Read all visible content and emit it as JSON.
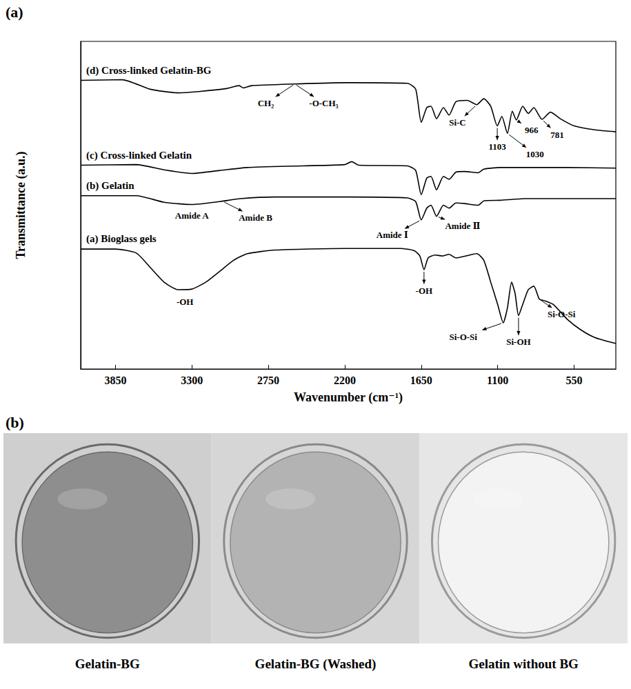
{
  "panel_a_label": "(a)",
  "chart_data": {
    "type": "line",
    "x_label": "Wavenumber (cm⁻¹)",
    "y_label": "Transmittance (a.u.)",
    "xlim": [
      4100,
      250
    ],
    "xticks": [
      3850,
      3300,
      2750,
      2200,
      1650,
      1100,
      550
    ],
    "ylim": [
      0,
      100
    ],
    "yticks": [],
    "tick_labels": "x",
    "grid": false,
    "series": [
      {
        "name": "(d) Cross-linked Gelatin-BG",
        "color": "#000000",
        "x": [
          4100,
          3800,
          3600,
          3400,
          3250,
          3050,
          2960,
          2930,
          2870,
          2560,
          2200,
          1750,
          1690,
          1650,
          1610,
          1580,
          1540,
          1490,
          1450,
          1400,
          1320,
          1250,
          1200,
          1150,
          1103,
          1070,
          1030,
          995,
          966,
          920,
          880,
          840,
          781,
          720,
          650,
          550,
          400,
          250
        ],
        "values": [
          88.1,
          88.3,
          85.4,
          84.3,
          84.7,
          85.6,
          86.5,
          85.8,
          86.5,
          87.0,
          87.4,
          87.2,
          85.4,
          75.3,
          79.8,
          80.2,
          76.4,
          79.8,
          77.5,
          81.6,
          82.0,
          80.7,
          82.5,
          80.2,
          74.2,
          77.1,
          71.9,
          78.7,
          76.0,
          80.2,
          78.0,
          79.8,
          76.2,
          78.4,
          76.4,
          74.2,
          73.0,
          72.4
        ]
      },
      {
        "name": "(c) Cross-linked Gelatin",
        "color": "#000000",
        "x": [
          4100,
          3700,
          3500,
          3300,
          3100,
          2900,
          2500,
          2200,
          2150,
          2100,
          1750,
          1690,
          1650,
          1610,
          1580,
          1540,
          1490,
          1450,
          1400,
          1340,
          1240,
          1200,
          1080,
          600,
          250
        ],
        "values": [
          62.2,
          62.4,
          60.8,
          59.7,
          60.6,
          61.5,
          62.0,
          62.4,
          63.3,
          62.2,
          62.0,
          60.6,
          53.2,
          58.3,
          58.8,
          54.7,
          58.8,
          57.9,
          60.1,
          60.3,
          59.9,
          61.0,
          61.5,
          61.5,
          61.3
        ]
      },
      {
        "name": "(b) Gelatin",
        "color": "#000000",
        "x": [
          4100,
          3700,
          3500,
          3300,
          3100,
          2950,
          2700,
          2200,
          1750,
          1690,
          1650,
          1610,
          1580,
          1540,
          1490,
          1450,
          1400,
          1340,
          1240,
          1200,
          1080,
          900,
          600,
          250
        ],
        "values": [
          52.9,
          52.9,
          50.9,
          50.2,
          51.1,
          52.0,
          52.5,
          52.5,
          52.2,
          51.1,
          45.5,
          49.1,
          50.0,
          46.6,
          50.0,
          49.1,
          50.7,
          50.5,
          50.0,
          51.3,
          51.5,
          52.0,
          52.0,
          52.0
        ]
      },
      {
        "name": "(a) Bioglass gels",
        "color": "#000000",
        "x": [
          4100,
          3850,
          3700,
          3600,
          3500,
          3400,
          3300,
          3200,
          3100,
          3000,
          2900,
          2700,
          2200,
          1800,
          1700,
          1660,
          1630,
          1600,
          1550,
          1500,
          1450,
          1400,
          1300,
          1250,
          1200,
          1150,
          1100,
          1060,
          1030,
          1000,
          975,
          950,
          920,
          880,
          840,
          800,
          760,
          700,
          600,
          500,
          400,
          250
        ],
        "values": [
          36.6,
          36.6,
          35.4,
          31.0,
          26.5,
          24.2,
          24.4,
          26.5,
          29.8,
          33.2,
          35.2,
          36.3,
          36.8,
          36.8,
          36.1,
          34.5,
          30.3,
          33.9,
          34.8,
          34.5,
          35.0,
          33.9,
          34.8,
          35.2,
          33.2,
          26.5,
          19.7,
          14.1,
          18.6,
          26.5,
          23.1,
          16.3,
          19.7,
          24.2,
          25.3,
          21.3,
          20.8,
          19.7,
          15.2,
          11.9,
          9.6,
          7.8
        ]
      }
    ],
    "annotations": [
      {
        "text": "-OH",
        "x": 3350,
        "y": 24.3
      },
      {
        "text": "-OH",
        "x": 1630,
        "y": 30.3
      },
      {
        "text": "Si-O-Si",
        "x": 1060,
        "y": 14.1
      },
      {
        "text": "Si-OH",
        "x": 950,
        "y": 16.3
      },
      {
        "text": "Si-O-Si",
        "x": 800,
        "y": 21.3
      },
      {
        "text": "Amide A",
        "x": 3300,
        "y": 50.2
      },
      {
        "text": "Amide B",
        "x": 3080,
        "y": 51.2
      },
      {
        "text": "Amide Ⅰ",
        "x": 1650,
        "y": 45.5
      },
      {
        "text": "Amide Ⅱ",
        "x": 1540,
        "y": 46.6
      },
      {
        "text": "CH₂",
        "x": 2560,
        "y": 87.0
      },
      {
        "text": "-O-CH₃",
        "x": 2560,
        "y": 87.0
      },
      {
        "text": "Si-C",
        "x": 1250,
        "y": 80.7
      },
      {
        "text": "1103",
        "x": 1103,
        "y": 74.2
      },
      {
        "text": "1030",
        "x": 1030,
        "y": 71.9
      },
      {
        "text": "966",
        "x": 966,
        "y": 76.0
      },
      {
        "text": "781",
        "x": 781,
        "y": 76.2
      }
    ]
  },
  "panel_b": {
    "label": "(b)",
    "images": [
      {
        "caption": "Gelatin-BG"
      },
      {
        "caption": "Gelatin-BG (Washed)"
      },
      {
        "caption": "Gelatin without BG"
      }
    ]
  }
}
